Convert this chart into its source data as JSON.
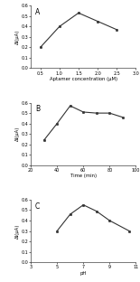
{
  "subplot_A": {
    "label": "A",
    "x": [
      0.5,
      1.0,
      1.5,
      2.0,
      2.5
    ],
    "y": [
      0.2,
      0.4,
      0.53,
      0.45,
      0.37
    ],
    "xlabel": "Aptamer concentration (μM)",
    "ylabel": "ΔI(μA)",
    "xlim": [
      0.25,
      3.0
    ],
    "ylim": [
      0,
      0.6
    ],
    "yticks": [
      0,
      0.1,
      0.2,
      0.3,
      0.4,
      0.5,
      0.6
    ],
    "xticks": [
      0.5,
      1.0,
      1.5,
      2.0,
      2.5,
      3.0
    ]
  },
  "subplot_B": {
    "label": "B",
    "x": [
      30,
      40,
      50,
      60,
      70,
      80,
      90
    ],
    "y": [
      0.24,
      0.4,
      0.57,
      0.51,
      0.5,
      0.5,
      0.46
    ],
    "xlabel": "Time (min)",
    "ylabel": "ΔI(μA)",
    "xlim": [
      20,
      100
    ],
    "ylim": [
      0,
      0.6
    ],
    "yticks": [
      0,
      0.1,
      0.2,
      0.3,
      0.4,
      0.5,
      0.6
    ],
    "xticks": [
      20,
      40,
      60,
      80,
      100
    ]
  },
  "subplot_C": {
    "label": "C",
    "x": [
      5,
      6,
      7,
      8,
      9,
      10.5
    ],
    "y": [
      0.3,
      0.46,
      0.55,
      0.49,
      0.4,
      0.3
    ],
    "xlabel": "pH",
    "ylabel": "ΔI(μA)",
    "xlim": [
      3,
      11
    ],
    "ylim": [
      0,
      0.6
    ],
    "yticks": [
      0,
      0.1,
      0.2,
      0.3,
      0.4,
      0.5,
      0.6
    ],
    "xticks": [
      3,
      5,
      7,
      9,
      11
    ]
  },
  "line_color": "#333333",
  "marker": "o",
  "markersize": 1.8,
  "linewidth": 0.8,
  "label_fontsize": 3.8,
  "tick_fontsize": 3.5,
  "panel_label_fontsize": 5.5,
  "background_color": "#ffffff"
}
